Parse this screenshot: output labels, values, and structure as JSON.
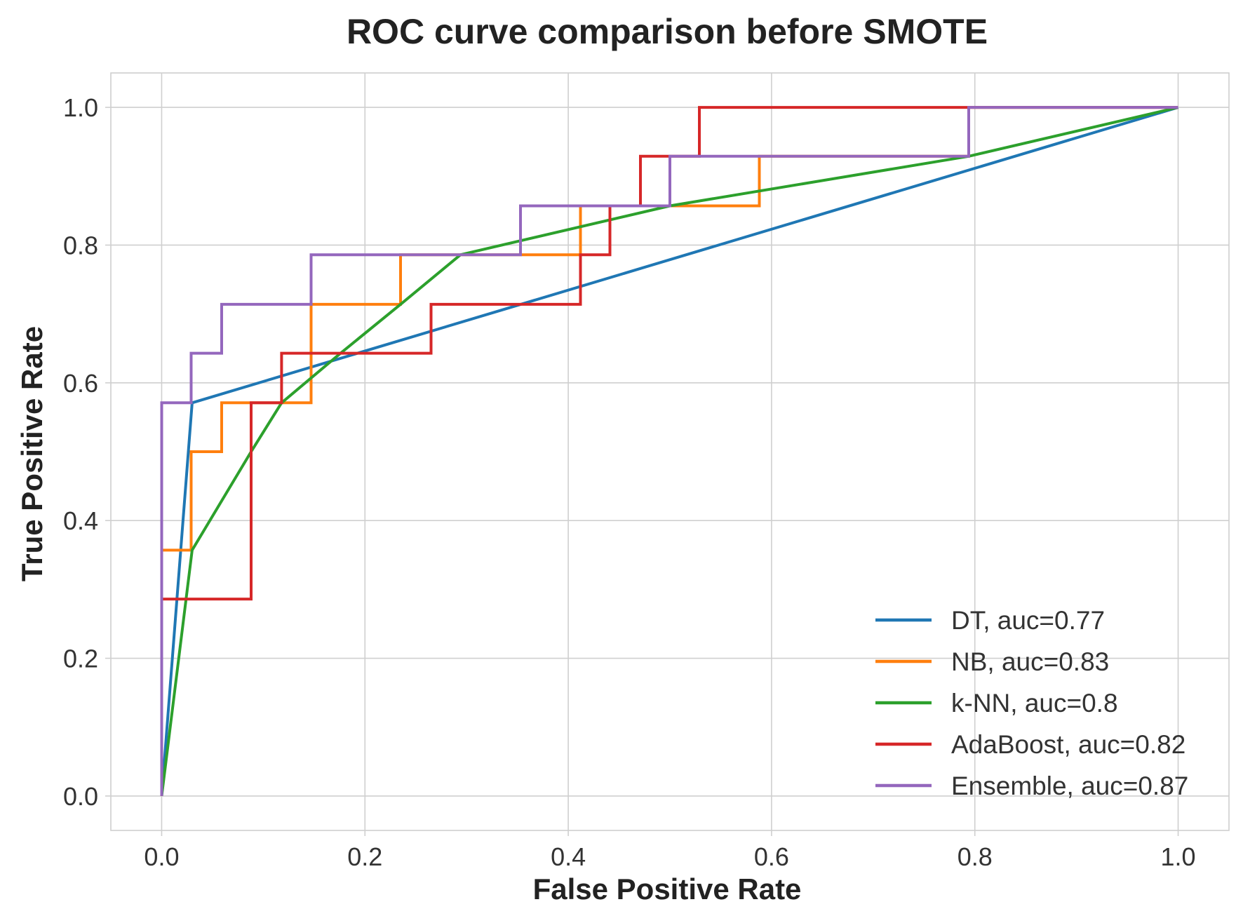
{
  "chart_data": {
    "type": "line",
    "title": "ROC curve comparison before SMOTE",
    "xlabel": "False Positive Rate",
    "ylabel": "True Positive Rate",
    "xlim": [
      -0.05,
      1.05
    ],
    "ylim": [
      -0.05,
      1.05
    ],
    "xticks": [
      0.0,
      0.2,
      0.4,
      0.6,
      0.8,
      1.0
    ],
    "yticks": [
      0.0,
      0.2,
      0.4,
      0.6,
      0.8,
      1.0
    ],
    "xtick_labels": [
      "0.0",
      "0.2",
      "0.4",
      "0.6",
      "0.8",
      "1.0"
    ],
    "ytick_labels": [
      "0.0",
      "0.2",
      "0.4",
      "0.6",
      "0.8",
      "1.0"
    ],
    "grid": true,
    "legend_position": "bottom-right",
    "series": [
      {
        "name": "DT, auc=0.77",
        "color": "#1f77b4",
        "points": [
          [
            0.0,
            0.0
          ],
          [
            0.03,
            0.571
          ],
          [
            1.0,
            1.0
          ]
        ]
      },
      {
        "name": "NB, auc=0.83",
        "color": "#ff7f0e",
        "points": [
          [
            0.0,
            0.0
          ],
          [
            0.0,
            0.357
          ],
          [
            0.029,
            0.357
          ],
          [
            0.029,
            0.5
          ],
          [
            0.059,
            0.5
          ],
          [
            0.059,
            0.571
          ],
          [
            0.088,
            0.571
          ],
          [
            0.088,
            0.571
          ],
          [
            0.147,
            0.571
          ],
          [
            0.147,
            0.714
          ],
          [
            0.235,
            0.714
          ],
          [
            0.235,
            0.786
          ],
          [
            0.353,
            0.786
          ],
          [
            0.412,
            0.786
          ],
          [
            0.412,
            0.857
          ],
          [
            0.5,
            0.857
          ],
          [
            0.588,
            0.857
          ],
          [
            0.588,
            0.929
          ],
          [
            0.794,
            0.929
          ],
          [
            0.794,
            1.0
          ],
          [
            1.0,
            1.0
          ]
        ]
      },
      {
        "name": "k-NN, auc=0.8",
        "color": "#2ca02c",
        "points": [
          [
            0.0,
            0.0
          ],
          [
            0.03,
            0.357
          ],
          [
            0.088,
            0.5
          ],
          [
            0.118,
            0.571
          ],
          [
            0.176,
            0.643
          ],
          [
            0.235,
            0.714
          ],
          [
            0.294,
            0.786
          ],
          [
            0.5,
            0.857
          ],
          [
            0.794,
            0.929
          ],
          [
            1.0,
            1.0
          ]
        ]
      },
      {
        "name": "AdaBoost, auc=0.82",
        "color": "#d62728",
        "points": [
          [
            0.0,
            0.0
          ],
          [
            0.0,
            0.286
          ],
          [
            0.088,
            0.286
          ],
          [
            0.088,
            0.571
          ],
          [
            0.118,
            0.571
          ],
          [
            0.118,
            0.643
          ],
          [
            0.265,
            0.643
          ],
          [
            0.265,
            0.714
          ],
          [
            0.412,
            0.714
          ],
          [
            0.412,
            0.786
          ],
          [
            0.441,
            0.786
          ],
          [
            0.441,
            0.857
          ],
          [
            0.471,
            0.857
          ],
          [
            0.471,
            0.929
          ],
          [
            0.529,
            0.929
          ],
          [
            0.529,
            1.0
          ],
          [
            1.0,
            1.0
          ]
        ]
      },
      {
        "name": "Ensemble, auc=0.87",
        "color": "#9467bd",
        "points": [
          [
            0.0,
            0.0
          ],
          [
            0.0,
            0.571
          ],
          [
            0.029,
            0.571
          ],
          [
            0.029,
            0.643
          ],
          [
            0.059,
            0.643
          ],
          [
            0.059,
            0.714
          ],
          [
            0.147,
            0.714
          ],
          [
            0.147,
            0.786
          ],
          [
            0.353,
            0.786
          ],
          [
            0.353,
            0.857
          ],
          [
            0.5,
            0.857
          ],
          [
            0.5,
            0.929
          ],
          [
            0.794,
            0.929
          ],
          [
            0.794,
            1.0
          ],
          [
            1.0,
            1.0
          ]
        ]
      }
    ]
  }
}
